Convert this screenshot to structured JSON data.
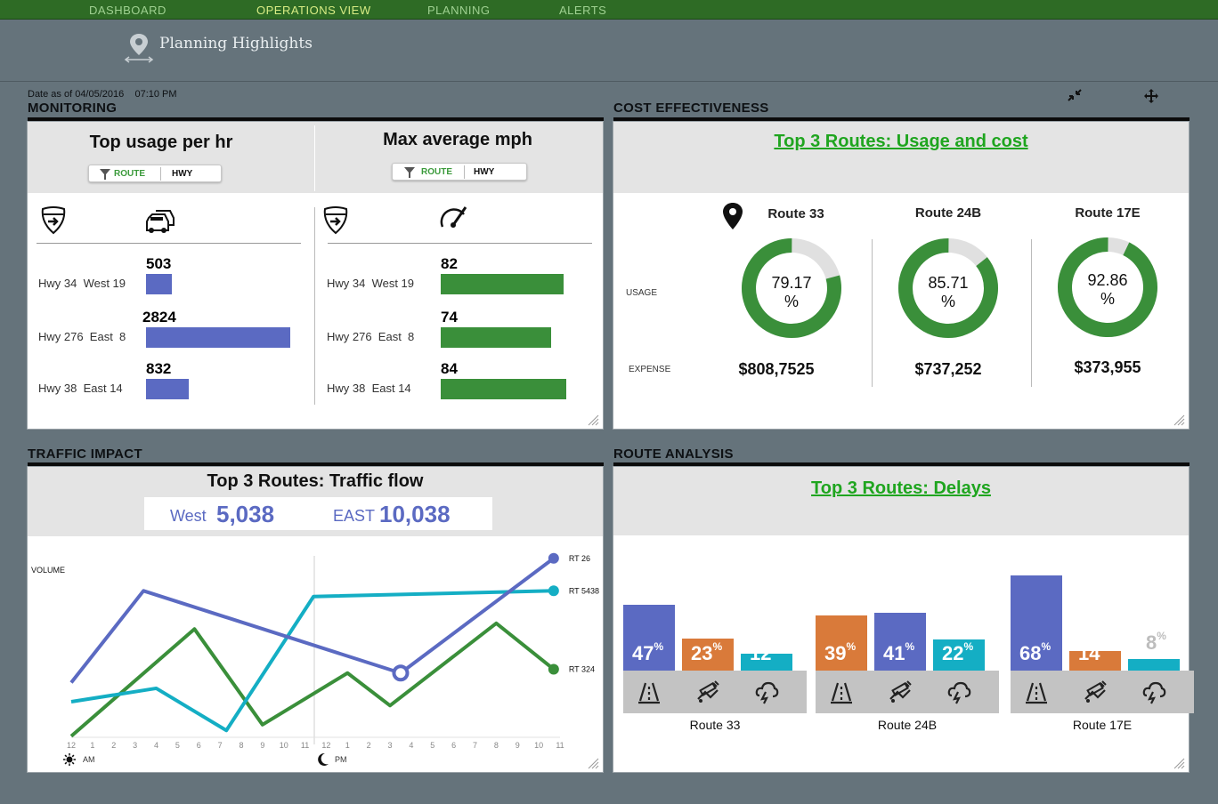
{
  "nav": {
    "items": [
      {
        "label": "DASHBOARD",
        "active": false
      },
      {
        "label": "OPERATIONS  VIEW",
        "active": true
      },
      {
        "label": "PLANNING",
        "active": false
      },
      {
        "label": "ALERTS",
        "active": false
      }
    ]
  },
  "header": {
    "title": "Planning Highlights",
    "icon": "map-pin-icon"
  },
  "date_label": "Date as of 04/05/2016    07:10 PM",
  "monitoring": {
    "section_title": "MONITORING",
    "usage": {
      "title": "Top usage per hr",
      "toggle": {
        "on": "ROUTE",
        "off": "HWY"
      },
      "rows": [
        {
          "label": "Hwy 34  West 19",
          "value": "503",
          "num": 503
        },
        {
          "label": "Hwy 276  East  8",
          "value": "2824",
          "num": 2824
        },
        {
          "label": "Hwy 38  East 14",
          "value": "832",
          "num": 832
        }
      ],
      "bar_color": "#5b6ac2"
    },
    "speed": {
      "title": "Max average mph",
      "toggle": {
        "on": "ROUTE",
        "off": "HWY"
      },
      "rows": [
        {
          "label": "Hwy 34  West 19",
          "value": "82",
          "num": 82
        },
        {
          "label": "Hwy 276  East  8",
          "value": "74",
          "num": 74
        },
        {
          "label": "Hwy 38  East 14",
          "value": "84",
          "num": 84
        }
      ],
      "bar_color": "#3a8f3a"
    }
  },
  "cost": {
    "section_title": "COST EFFECTIVENESS",
    "title": "Top 3 Routes: Usage and cost ",
    "usage_label": "USAGE",
    "expense_label": "EXPENSE",
    "routes": [
      {
        "name": "Route 33",
        "pct": "79.17",
        "pct_num": 79.17,
        "unit": "%",
        "expense": "$808,7525"
      },
      {
        "name": "Route 24B",
        "pct": "85.71",
        "pct_num": 85.71,
        "unit": "%",
        "expense": "$737,252"
      },
      {
        "name": "Route 17E",
        "pct": "92.86",
        "pct_num": 92.86,
        "unit": "%",
        "expense": "$373,955"
      }
    ],
    "colors": {
      "fill": "#3a8f3a",
      "track": "#e0e0e0"
    }
  },
  "traffic": {
    "section_title": "TRAFFIC IMPACT",
    "title": "Top 3 Routes: Traffic flow",
    "west_label": "West",
    "west_value": "5,038",
    "east_label": "EAST",
    "east_value": "10,038",
    "ylabel": "VOLUME",
    "am_label": "AM",
    "pm_label": "PM"
  },
  "chart_data": {
    "type": "line",
    "title": "Top 3 Routes: Traffic flow",
    "ylabel": "VOLUME",
    "x": [
      "12",
      "1",
      "2",
      "3",
      "4",
      "5",
      "6",
      "7",
      "8",
      "9",
      "10",
      "11",
      "12",
      "1",
      "2",
      "3",
      "4",
      "5",
      "6",
      "7",
      "8",
      "9",
      "10",
      "11"
    ],
    "series": [
      {
        "name": "RT 26",
        "color": "#5b6ac2",
        "points": [
          [
            0,
            30
          ],
          [
            3.4,
            78
          ],
          [
            15.5,
            35
          ],
          [
            22.7,
            95
          ]
        ],
        "marker_at": 2
      },
      {
        "name": "RT 5438",
        "color": "#14aec4",
        "points": [
          [
            0,
            20
          ],
          [
            4,
            27
          ],
          [
            7.3,
            5
          ],
          [
            11.4,
            75
          ],
          [
            22.7,
            78
          ]
        ]
      },
      {
        "name": "RT 324",
        "color": "#3a8f3a",
        "points": [
          [
            0,
            2
          ],
          [
            5.8,
            58
          ],
          [
            9,
            8
          ],
          [
            13,
            35
          ],
          [
            15,
            18
          ],
          [
            20,
            61
          ],
          [
            22.7,
            37
          ]
        ]
      }
    ],
    "ylim": [
      0,
      100
    ],
    "grid": false
  },
  "delays": {
    "section_title": "ROUTE ANALYSIS",
    "title": "Top 3 Routes: Delays",
    "pct_sign": "%",
    "groups": [
      {
        "name": "Route 33",
        "bars": [
          {
            "label": "47",
            "value": 47,
            "color": "#5b6ac2"
          },
          {
            "label": "23",
            "value": 23,
            "color": "#d97a3a"
          },
          {
            "label": "12",
            "value": 12,
            "color": "#14aec4"
          }
        ]
      },
      {
        "name": "Route 24B",
        "bars": [
          {
            "label": "39",
            "value": 39,
            "color": "#d97a3a"
          },
          {
            "label": "41",
            "value": 41,
            "color": "#5b6ac2"
          },
          {
            "label": "22",
            "value": 22,
            "color": "#14aec4"
          }
        ]
      },
      {
        "name": "Route 17E",
        "bars": [
          {
            "label": "68",
            "value": 68,
            "color": "#5b6ac2"
          },
          {
            "label": "14",
            "value": 14,
            "color": "#d97a3a"
          },
          {
            "label": "8",
            "value": 8,
            "color": "#14aec4"
          }
        ]
      }
    ],
    "icons": [
      "road-icon",
      "construction-icon",
      "weather-icon"
    ]
  }
}
